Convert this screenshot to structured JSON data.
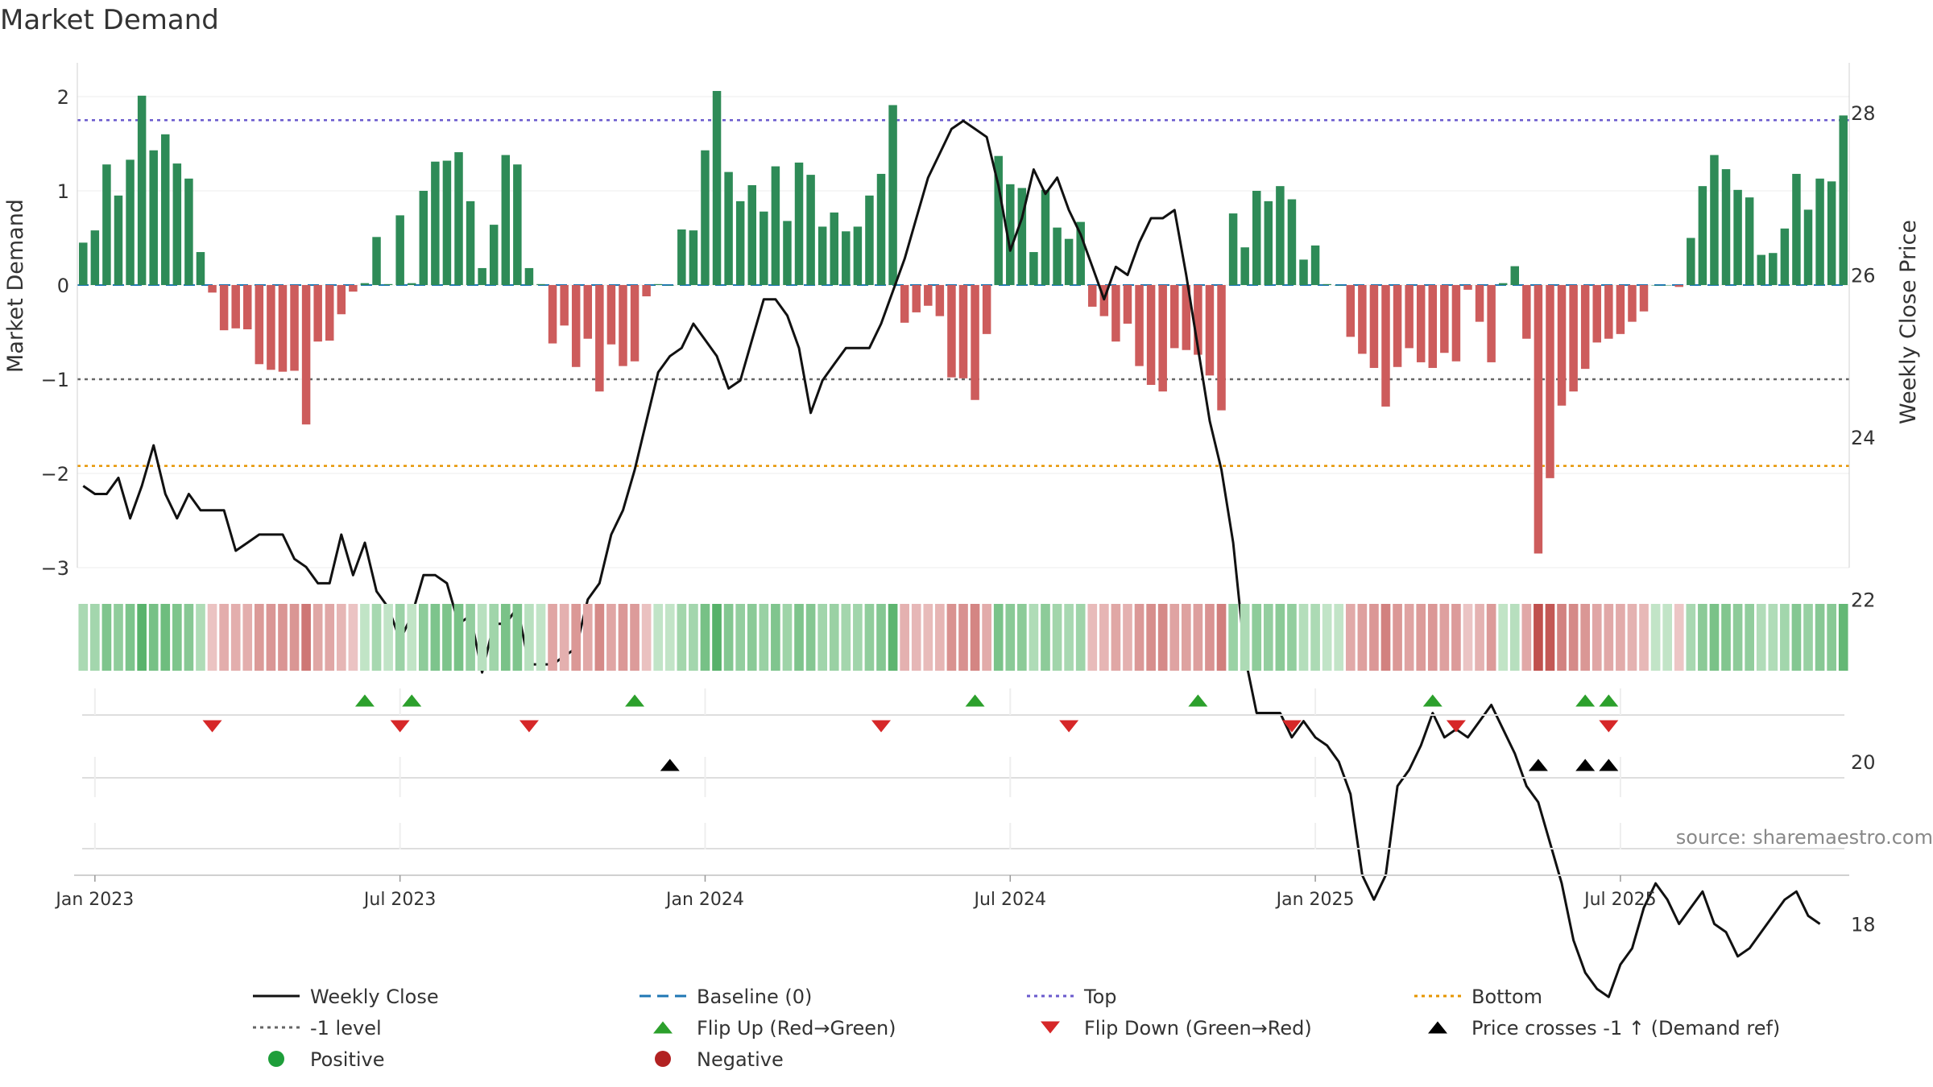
{
  "chart_data": {
    "type": "bar",
    "title": "Market Demand",
    "ylabel": "Market Demand",
    "y2label": "Weekly Close Price",
    "ylim": [
      -3.3,
      2.1
    ],
    "y2lim": [
      16.7,
      28.6
    ],
    "yticks": [
      "2",
      "1",
      "0",
      "−1",
      "−2",
      "−3"
    ],
    "y2ticks": [
      "28",
      "26",
      "24",
      "22",
      "20",
      "18"
    ],
    "x_ticks": [
      "Jan 2023",
      "Jul 2023",
      "Jan 2024",
      "Jul 2024",
      "Jan 2025",
      "Jul 2025"
    ],
    "source": "source: sharemaestro.com",
    "reference_lines": {
      "top": 1.75,
      "bottom": -1.92,
      "minus_one": -1,
      "baseline": 0
    },
    "weeks_start": "2022-12-25",
    "demand": [
      0.45,
      0.58,
      1.28,
      0.95,
      1.33,
      2.01,
      1.43,
      1.6,
      1.29,
      1.13,
      0.35,
      -0.08,
      -0.48,
      -0.46,
      -0.47,
      -0.84,
      -0.9,
      -0.92,
      -0.91,
      -1.48,
      -0.6,
      -0.59,
      -0.31,
      -0.07,
      0.02,
      0.51,
      0.01,
      0.74,
      0.02,
      1.0,
      1.31,
      1.32,
      1.41,
      0.89,
      0.18,
      0.64,
      1.38,
      1.28,
      0.18,
      0.01,
      -0.62,
      -0.43,
      -0.87,
      -0.57,
      -1.13,
      -0.63,
      -0.86,
      -0.81,
      -0.12,
      0.01,
      0.0,
      0.59,
      0.58,
      1.43,
      2.06,
      1.2,
      0.89,
      1.06,
      0.78,
      1.26,
      0.68,
      1.3,
      1.17,
      0.62,
      0.77,
      0.57,
      0.62,
      0.95,
      1.18,
      1.91,
      -0.4,
      -0.29,
      -0.22,
      -0.33,
      -0.98,
      -0.99,
      -1.22,
      -0.52,
      1.37,
      1.07,
      1.03,
      0.35,
      1.01,
      0.61,
      0.49,
      0.67,
      -0.23,
      -0.33,
      -0.6,
      -0.41,
      -0.86,
      -1.06,
      -1.13,
      -0.67,
      -0.69,
      -0.74,
      -0.96,
      -1.33,
      0.76,
      0.4,
      1.0,
      0.89,
      1.05,
      0.91,
      0.27,
      0.42,
      0.01,
      0.0,
      -0.55,
      -0.73,
      -0.88,
      -1.29,
      -0.87,
      -0.67,
      -0.82,
      -0.88,
      -0.72,
      -0.81,
      -0.05,
      -0.39,
      -0.82,
      0.02,
      0.2,
      -0.57,
      -2.85,
      -2.05,
      -1.28,
      -1.13,
      -0.89,
      -0.61,
      -0.57,
      -0.52,
      -0.39,
      -0.28,
      0.0,
      0.0,
      -0.02,
      0.5,
      1.05,
      1.38,
      1.23,
      1.01,
      0.93,
      0.32,
      0.34,
      0.6,
      1.18,
      0.8,
      1.13,
      1.1,
      1.8
    ],
    "weekly_close": [
      23.4,
      23.3,
      23.3,
      23.5,
      23.0,
      23.4,
      23.9,
      23.3,
      23.0,
      23.3,
      23.1,
      23.1,
      23.1,
      22.6,
      22.7,
      22.8,
      22.8,
      22.8,
      22.5,
      22.4,
      22.2,
      22.2,
      22.8,
      22.3,
      22.7,
      22.1,
      21.9,
      21.5,
      21.8,
      22.3,
      22.3,
      22.2,
      21.7,
      21.8,
      21.1,
      21.7,
      21.7,
      21.9,
      21.2,
      21.2,
      21.2,
      21.3,
      21.4,
      22.0,
      22.2,
      22.8,
      23.1,
      23.6,
      24.2,
      24.8,
      25.0,
      25.1,
      25.4,
      25.2,
      25.0,
      24.6,
      24.7,
      25.2,
      25.7,
      25.7,
      25.5,
      25.1,
      24.3,
      24.7,
      24.9,
      25.1,
      25.1,
      25.1,
      25.4,
      25.8,
      26.2,
      26.7,
      27.2,
      27.5,
      27.8,
      27.9,
      27.8,
      27.7,
      27.1,
      26.3,
      26.7,
      27.3,
      27.0,
      27.2,
      26.8,
      26.5,
      26.1,
      25.7,
      26.1,
      26.0,
      26.4,
      26.7,
      26.7,
      26.8,
      26.0,
      25.1,
      24.2,
      23.6,
      22.7,
      21.3,
      20.6,
      20.6,
      20.6,
      20.3,
      20.5,
      20.3,
      20.2,
      20.0,
      19.6,
      18.6,
      18.3,
      18.6,
      19.7,
      19.9,
      20.2,
      20.6,
      20.3,
      20.4,
      20.3,
      20.5,
      20.7,
      20.4,
      20.1,
      19.7,
      19.5,
      19.0,
      18.5,
      17.8,
      17.4,
      17.2,
      17.1,
      17.5,
      17.7,
      18.2,
      18.5,
      18.3,
      18.0,
      18.2,
      18.4,
      18.0,
      17.9,
      17.6,
      17.7,
      17.9,
      18.1,
      18.3,
      18.4,
      18.1,
      18.0
    ],
    "heat_strip": "weekly demand colour strip (green = positive, red = negative)",
    "events": {
      "flip_up_weeks": [
        24,
        28,
        47,
        76,
        95,
        115,
        128,
        130
      ],
      "flip_down_weeks": [
        11,
        27,
        38,
        68,
        84,
        103,
        117,
        130
      ],
      "price_cross_weeks": [
        50,
        124,
        128,
        130
      ]
    },
    "legend": [
      {
        "label": "Weekly Close",
        "kind": "line-black"
      },
      {
        "label": "Baseline (0)",
        "kind": "line-blue-dash"
      },
      {
        "label": "Top",
        "kind": "line-purple-dot"
      },
      {
        "label": "Bottom",
        "kind": "line-orange-dot"
      },
      {
        "label": "-1 level",
        "kind": "line-gray-dot"
      },
      {
        "label": "Flip Up (Red→Green)",
        "kind": "tri-up-green"
      },
      {
        "label": "Flip Down (Green→Red)",
        "kind": "tri-down-red"
      },
      {
        "label": "Price crosses -1 ↑ (Demand ref)",
        "kind": "tri-up-black"
      },
      {
        "label": "Positive",
        "kind": "dot-green"
      },
      {
        "label": "Negative",
        "kind": "dot-red"
      }
    ]
  },
  "colors": {
    "positive": "#2e8b57",
    "negative": "#cd5c5c",
    "line": "#111111",
    "baseline": "#1f77b4",
    "top": "#6a5acd",
    "bottom": "#e69500",
    "minus_one": "#666666",
    "flip_up": "#2ca02c",
    "flip_down": "#d62728",
    "price_cross": "#000000",
    "positive_dot": "#1e9e3a",
    "negative_dot": "#b22222"
  }
}
